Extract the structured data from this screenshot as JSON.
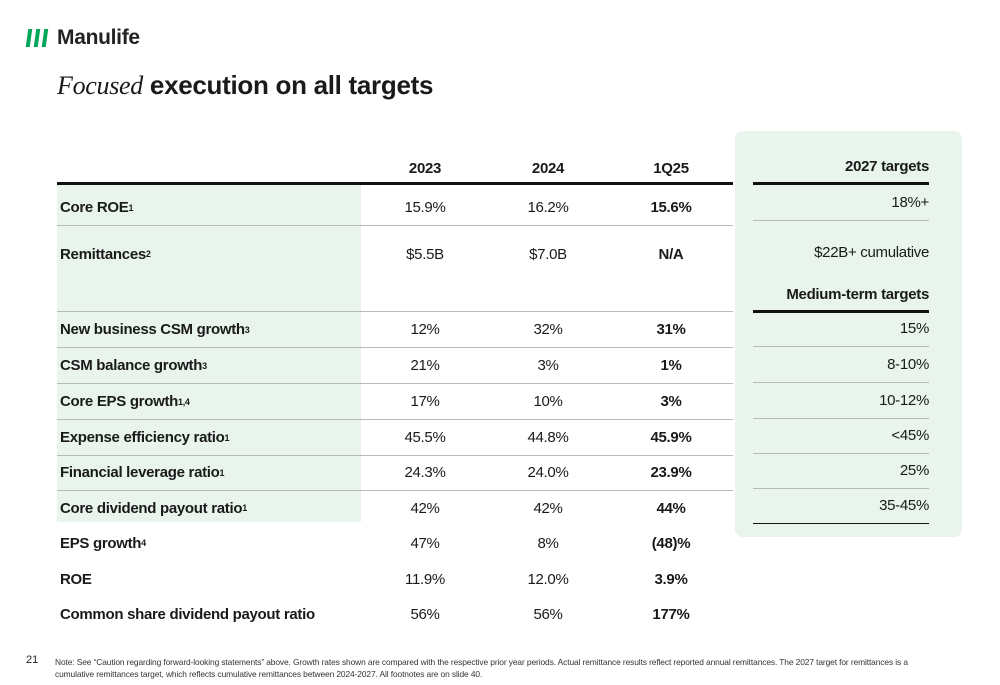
{
  "brand": {
    "name": "Manulife",
    "accent": "#00a758"
  },
  "title": {
    "italic": "Focused",
    "bold": "execution on all targets"
  },
  "table": {
    "headers": [
      "2023",
      "2024",
      "1Q25"
    ],
    "rows": [
      {
        "label": "Core ROE",
        "sup": "1",
        "v2023": "15.9%",
        "v2024": "16.2%",
        "v1q25": "15.6%"
      },
      {
        "label": "Remittances",
        "sup": "2",
        "v2023": "$5.5B",
        "v2024": "$7.0B",
        "v1q25": "N/A"
      },
      {
        "label": "",
        "sup": "",
        "v2023": "",
        "v2024": "",
        "v1q25": ""
      },
      {
        "label": "New business CSM growth",
        "sup": "3",
        "v2023": "12%",
        "v2024": "32%",
        "v1q25": "31%"
      },
      {
        "label": "CSM balance growth",
        "sup": "3",
        "v2023": "21%",
        "v2024": "3%",
        "v1q25": "1%"
      },
      {
        "label": "Core EPS growth",
        "sup": "1,4",
        "v2023": "17%",
        "v2024": "10%",
        "v1q25": "3%"
      },
      {
        "label": "Expense efficiency ratio",
        "sup": "1",
        "v2023": "45.5%",
        "v2024": "44.8%",
        "v1q25": "45.9%"
      },
      {
        "label": "Financial leverage ratio",
        "sup": "1",
        "v2023": "24.3%",
        "v2024": "24.0%",
        "v1q25": "23.9%"
      },
      {
        "label": "Core dividend payout ratio",
        "sup": "1",
        "v2023": "42%",
        "v2024": "42%",
        "v1q25": "44%"
      },
      {
        "label": "EPS growth",
        "sup": "4",
        "v2023": "47%",
        "v2024": "8%",
        "v1q25": "(48)%"
      },
      {
        "label": "ROE",
        "sup": "",
        "v2023": "11.9%",
        "v2024": "12.0%",
        "v1q25": "3.9%"
      },
      {
        "label": "Common share dividend payout ratio",
        "sup": "",
        "v2023": "56%",
        "v2024": "56%",
        "v1q25": "177%"
      }
    ]
  },
  "targets": {
    "header_2027": "2027 targets",
    "values_2027": [
      "18%+",
      "$22B+ cumulative"
    ],
    "header_medium": "Medium-term targets",
    "values_medium": [
      "15%",
      "8-10%",
      "10-12%",
      "<45%",
      "25%",
      "35-45%"
    ]
  },
  "footer": {
    "page_number": "21",
    "note": "Note: See “Caution regarding forward-looking statements” above. Growth rates shown are compared with the respective prior year periods. Actual remittance results reflect reported annual remittances. The 2027 target for remittances is a cumulative remittances target, which reflects cumulative remittances between 2024-2027. All footnotes are on slide 40."
  }
}
